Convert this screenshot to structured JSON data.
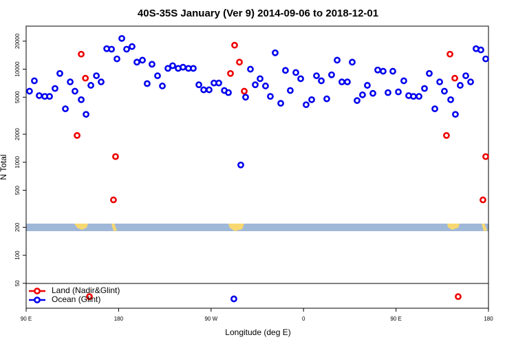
{
  "chart_data": {
    "type": "scatter",
    "title": "40S-35S January (Ver 9)   2014-09-06 to 2018-12-01",
    "x_label": "Longitude (deg E)",
    "y_label": "N Total",
    "ylog": true,
    "xlim": [
      90,
      540
    ],
    "ylim": [
      27,
      29000
    ],
    "xticks": [
      {
        "value": 90,
        "label": "90 E"
      },
      180,
      {
        "value": 270,
        "label": "90 W"
      },
      {
        "value": 360,
        "label": "0"
      },
      {
        "value": 450,
        "label": "90 E"
      },
      {
        "value": 540,
        "label": "180"
      }
    ],
    "yticks": [
      50,
      100,
      200,
      500,
      1000,
      2000,
      5000,
      10000,
      20000
    ],
    "legend": "bottom-left",
    "series": [
      {
        "name": "Land (Nadir&Glint)",
        "color": "#ee0000",
        "x": [
          139.6,
          143.6,
          147.7,
          151.6,
          175.0,
          177.0,
          288.9,
          292.9,
          297.6,
          302.3,
          499.1,
          502.5,
          507.2,
          510.5,
          534.6,
          537.3
        ],
        "values": [
          1940,
          14500,
          8000,
          36,
          394,
          1150,
          9000,
          18100,
          11900,
          5800,
          1940,
          14500,
          8000,
          36,
          394,
          1150
        ]
      },
      {
        "name": "Ocean (Glint)",
        "color": "#0000ee",
        "x": [
          93.3,
          98.0,
          102.7,
          108.1,
          112.8,
          118.1,
          122.8,
          128.2,
          132.9,
          137.5,
          143.6,
          148.3,
          153.0,
          158.4,
          163.0,
          168.4,
          173.1,
          178.4,
          183.1,
          187.8,
          193.1,
          197.8,
          203.2,
          207.8,
          212.5,
          217.9,
          222.6,
          228.0,
          232.6,
          238.0,
          242.7,
          248.0,
          252.7,
          258.1,
          262.8,
          268.1,
          272.8,
          277.5,
          282.9,
          286.9,
          292.2,
          298.9,
          303.6,
          308.3,
          313.0,
          317.7,
          323.0,
          327.7,
          332.4,
          337.8,
          342.4,
          347.1,
          352.5,
          357.2,
          362.5,
          367.9,
          372.6,
          377.3,
          382.6,
          387.3,
          392.7,
          397.3,
          402.7,
          407.4,
          412.1,
          417.4,
          422.1,
          427.5,
          432.2,
          437.5,
          442.2,
          446.9,
          452.3,
          457.6,
          462.3,
          467.0,
          472.4,
          477.7,
          482.4,
          487.8,
          492.5,
          497.1,
          503.2,
          507.8,
          512.5,
          517.9,
          522.6,
          527.9,
          532.6,
          537.3
        ],
        "values": [
          5800,
          7500,
          5200,
          5100,
          5100,
          6200,
          9000,
          3750,
          7300,
          5800,
          4700,
          3270,
          6700,
          8500,
          7300,
          16600,
          16400,
          12900,
          21400,
          16400,
          17500,
          11900,
          12500,
          7000,
          11300,
          8500,
          6600,
          10200,
          10900,
          10200,
          10500,
          10200,
          10200,
          6800,
          6000,
          6000,
          7100,
          7100,
          5900,
          5600,
          34,
          935,
          5000,
          10000,
          6800,
          7900,
          6600,
          5100,
          15000,
          4300,
          9700,
          5900,
          9200,
          7900,
          4150,
          4700,
          8500,
          7500,
          4800,
          8700,
          12500,
          7300,
          7300,
          11900,
          4600,
          5300,
          6700,
          5500,
          9800,
          9500,
          5600,
          9500,
          5700,
          7500,
          5200,
          5100,
          5100,
          6200,
          9000,
          3750,
          7300,
          5800,
          4700,
          3270,
          6700,
          8500,
          7300,
          16600,
          16100,
          12900
        ]
      }
    ]
  }
}
